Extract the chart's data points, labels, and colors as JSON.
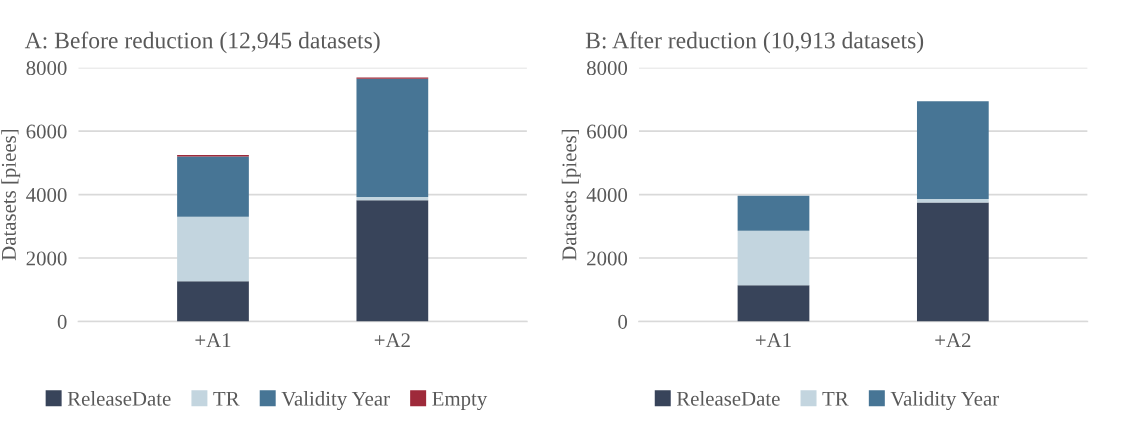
{
  "chart_data": [
    {
      "type": "bar",
      "stacked": true,
      "title": "A: Before reduction (12,945 datasets)",
      "ylabel": "Datasets [piees]",
      "categories": [
        "+A1",
        "+A2"
      ],
      "ylim": [
        0,
        8000
      ],
      "yticks": [
        0,
        2000,
        4000,
        6000,
        8000
      ],
      "grid": "y",
      "legend": "bottom",
      "series": [
        {
          "name": "ReleaseDate",
          "color": "#38445a",
          "values": [
            1270,
            3820
          ]
        },
        {
          "name": "TR",
          "color": "#c3d5df",
          "values": [
            2030,
            100
          ]
        },
        {
          "name": "Validity Year",
          "color": "#477595",
          "values": [
            1900,
            3730
          ]
        },
        {
          "name": "Empty",
          "color": "#9e2a3a",
          "values": [
            50,
            40
          ]
        }
      ]
    },
    {
      "type": "bar",
      "stacked": true,
      "title": "B: After reduction (10,913 datasets)",
      "ylabel": "Datasets [piees]",
      "categories": [
        "+A1",
        "+A2"
      ],
      "ylim": [
        0,
        8000
      ],
      "yticks": [
        0,
        2000,
        4000,
        6000,
        8000
      ],
      "grid": "y",
      "legend": "bottom",
      "series": [
        {
          "name": "ReleaseDate",
          "color": "#38445a",
          "values": [
            1140,
            3750
          ]
        },
        {
          "name": "TR",
          "color": "#c3d5df",
          "values": [
            1720,
            110
          ]
        },
        {
          "name": "Validity Year",
          "color": "#477595",
          "values": [
            1100,
            3080
          ]
        }
      ]
    }
  ]
}
